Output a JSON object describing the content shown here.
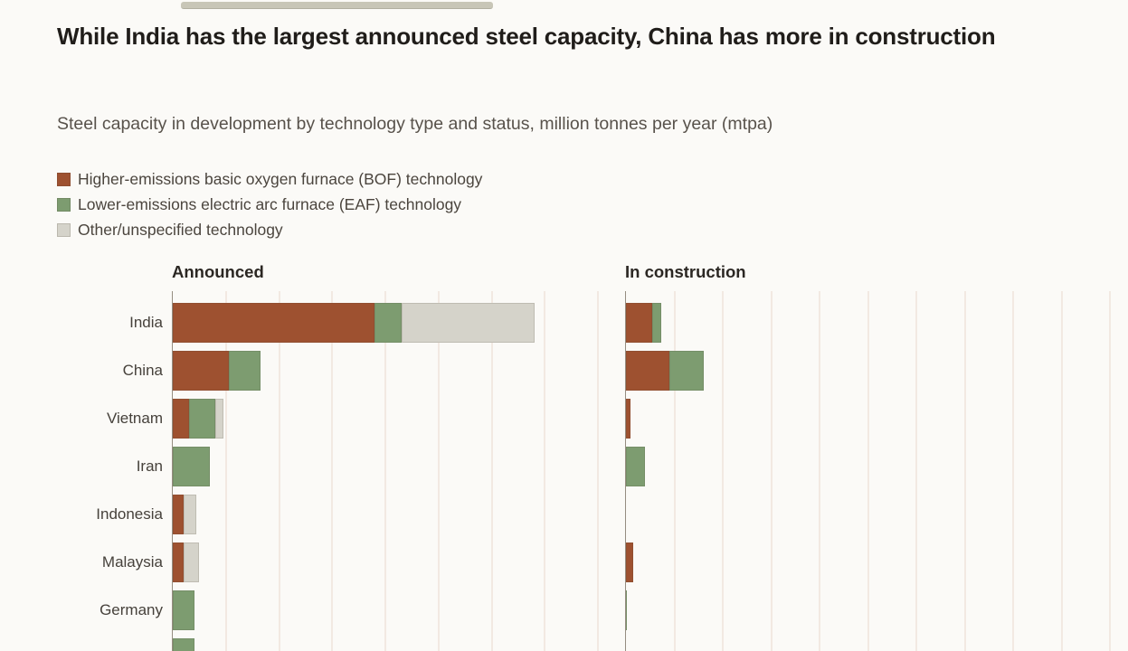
{
  "page": {
    "title": "While India has the largest announced steel capacity, China has more in construction",
    "subtitle": "Steel capacity in development by technology type and status, million tonnes per year (mtpa)"
  },
  "legend": {
    "items": [
      {
        "key": "bof",
        "label": "Higher-emissions basic oxygen furnace (BOF) technology"
      },
      {
        "key": "eaf",
        "label": "Lower-emissions electric arc furnace (EAF) technology"
      },
      {
        "key": "other",
        "label": "Other/unspecified technology"
      }
    ]
  },
  "colors": {
    "bof": "#9e5130",
    "eaf": "#7d9c70",
    "other": "#d5d3ca",
    "gridline": "#f2e9e2",
    "axis": "#968d81",
    "background": "#fbfaf7"
  },
  "chart_data": {
    "type": "bar",
    "orientation": "horizontal",
    "title": "While India has the largest announced steel capacity, China has more in construction",
    "subtitle": "Steel capacity in development by technology type and status, million tonnes per year (mtpa)",
    "unit": "million tonnes per year (mtpa)",
    "grid": true,
    "legend_position": "top-left",
    "values_estimated_from_pixels": true,
    "categories": [
      "India",
      "China",
      "Vietnam",
      "Iran",
      "Indonesia",
      "Malaysia",
      "Germany",
      ""
    ],
    "panels": [
      {
        "title": "Announced",
        "axis_max": 160,
        "gridline_interval": 20,
        "series": [
          {
            "name": "bof",
            "values": [
              76,
              21,
              6,
              0,
              4,
              4,
              0,
              0
            ]
          },
          {
            "name": "eaf",
            "values": [
              10,
              12,
              10,
              14,
              0,
              0,
              8,
              8
            ]
          },
          {
            "name": "other",
            "values": [
              50,
              0,
              3,
              0,
              5,
              6,
              0,
              0
            ]
          }
        ]
      },
      {
        "title": "In construction",
        "axis_max": 200,
        "gridline_interval": 20,
        "series": [
          {
            "name": "bof",
            "values": [
              11,
              18,
              2,
              0,
              0,
              3,
              0,
              0
            ]
          },
          {
            "name": "eaf",
            "values": [
              3.5,
              14,
              0,
              8,
              0,
              0,
              0.5,
              0
            ]
          },
          {
            "name": "other",
            "values": [
              0,
              0,
              0,
              0,
              0,
              0,
              0,
              0
            ]
          }
        ]
      }
    ]
  }
}
